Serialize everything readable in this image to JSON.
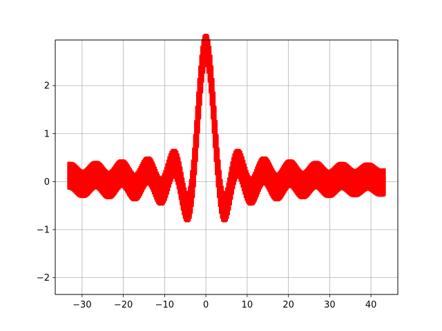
{
  "chart_data": {
    "type": "scatter",
    "title": "",
    "xlabel": "",
    "ylabel": "",
    "xlim": [
      -36.5,
      46.5
    ],
    "ylim": [
      -2.35,
      2.95
    ],
    "grid": true,
    "marker": "square",
    "xticks": [
      -30,
      -20,
      -10,
      0,
      10,
      20,
      30,
      40
    ],
    "yticks": [
      -2,
      -1,
      0,
      1,
      2
    ],
    "xtick_labels": [
      "−30",
      "−20",
      "−10",
      "0",
      "10",
      "20",
      "30",
      "40"
    ],
    "ytick_labels": [
      "−2",
      "−1",
      "0",
      "1",
      "2"
    ],
    "colors": {
      "points": "#ff0000",
      "grid": "#b0b0b0",
      "axes": "#000000"
    },
    "series": [
      {
        "x_range": [
          -33,
          43
        ],
        "step": 0.25,
        "amplitude": 2.75,
        "offsets": [
          -0.2,
          -0.16,
          -0.12,
          -0.08,
          -0.04,
          0,
          0.04,
          0.08,
          0.12,
          0.16,
          0.2,
          0.24,
          0.28
        ],
        "values": "y = amplitude * sin(x) / x + offset"
      }
    ]
  }
}
